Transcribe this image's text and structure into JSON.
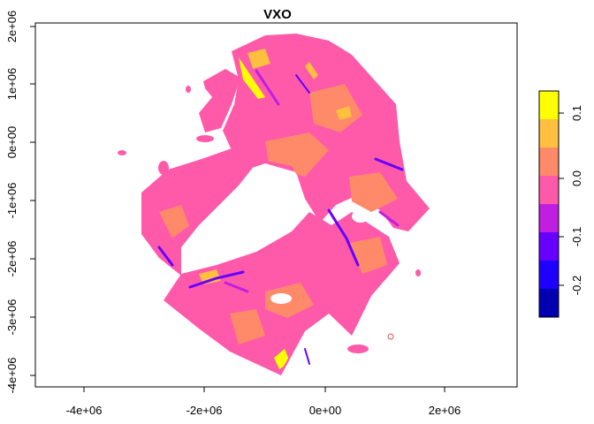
{
  "title": "VXO",
  "x_axis": {
    "ticks": [
      "-4e+06",
      "-2e+06",
      "0e+00",
      "2e+06"
    ]
  },
  "y_axis": {
    "ticks": [
      "2e+06",
      "1e+06",
      "0e+00",
      "-1e+06",
      "-2e+06",
      "-3e+06",
      "-4e+06"
    ]
  },
  "legend": {
    "placement": "right",
    "tick_labels": [
      "0.1",
      "0.0",
      "-0.1",
      "-0.2"
    ],
    "colors": [
      "#ffff00",
      "#ffbf3f",
      "#ff8a6a",
      "#ff5aaa",
      "#bf1fe0",
      "#6600ff",
      "#1f00ff",
      "#0000b0"
    ]
  },
  "map_colors": {
    "pink": "#ff5aaa",
    "salmon": "#ff8a6a",
    "orange": "#ffbf3f",
    "yellow": "#ffff00",
    "violet": "#bf1fe0",
    "purple": "#6600ff",
    "outlier": "#e05050"
  }
}
